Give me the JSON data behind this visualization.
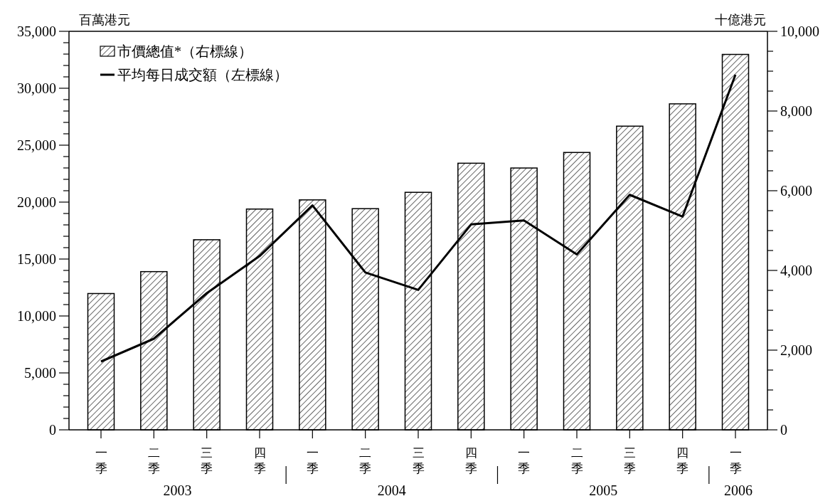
{
  "chart_data": {
    "type": "bar",
    "ylabel": "百萬港元",
    "y2label": "十億港元",
    "categories": [
      "一季",
      "二季",
      "三季",
      "四季",
      "一季",
      "二季",
      "三季",
      "四季",
      "一季",
      "二季",
      "三季",
      "四季",
      "一季"
    ],
    "series": [
      {
        "name": "市價總值*（右標線）",
        "axis": "y2",
        "color": "#000000",
        "values": [
          3420,
          3970,
          4770,
          5540,
          5770,
          5550,
          5960,
          6690,
          6570,
          6960,
          7620,
          8180,
          9420
        ]
      },
      {
        "name": "平均每日成交額（左標線）",
        "type": "line",
        "color": "#000000",
        "values": [
          6000,
          8000,
          12000,
          15260,
          19710,
          13820,
          12290,
          18040,
          18390,
          15410,
          20640,
          18730,
          31190
        ]
      }
    ],
    "ylim": [
      0,
      35000
    ],
    "yticks": [
      {
        "value": 0,
        "label": "0"
      },
      {
        "value": 1000,
        "label": null
      },
      {
        "value": 2000,
        "label": null
      },
      {
        "value": 3000,
        "label": null
      },
      {
        "value": 4000,
        "label": null
      },
      {
        "value": 5000,
        "label": "5,000"
      },
      {
        "value": 6000,
        "label": null
      },
      {
        "value": 7000,
        "label": null
      },
      {
        "value": 8000,
        "label": null
      },
      {
        "value": 9000,
        "label": null
      },
      {
        "value": 10000,
        "label": "10,000"
      },
      {
        "value": 11000,
        "label": null
      },
      {
        "value": 12000,
        "label": null
      },
      {
        "value": 13000,
        "label": null
      },
      {
        "value": 14000,
        "label": null
      },
      {
        "value": 15000,
        "label": "15,000"
      },
      {
        "value": 16000,
        "label": null
      },
      {
        "value": 17000,
        "label": null
      },
      {
        "value": 18000,
        "label": null
      },
      {
        "value": 19000,
        "label": null
      },
      {
        "value": 20000,
        "label": "20,000"
      },
      {
        "value": 21000,
        "label": null
      },
      {
        "value": 22000,
        "label": null
      },
      {
        "value": 23000,
        "label": null
      },
      {
        "value": 24000,
        "label": null
      },
      {
        "value": 25000,
        "label": "25,000"
      },
      {
        "value": 26000,
        "label": null
      },
      {
        "value": 27000,
        "label": null
      },
      {
        "value": 28000,
        "label": null
      },
      {
        "value": 29000,
        "label": null
      },
      {
        "value": 30000,
        "label": "30,000"
      },
      {
        "value": 31000,
        "label": null
      },
      {
        "value": 32000,
        "label": null
      },
      {
        "value": 33000,
        "label": null
      },
      {
        "value": 34000,
        "label": null
      },
      {
        "value": 35000,
        "label": "35,000"
      }
    ],
    "y2lim": [
      0,
      10000
    ],
    "y2ticks": [
      {
        "value": 0,
        "label": "0"
      },
      {
        "value": 500,
        "label": null
      },
      {
        "value": 1000,
        "label": null
      },
      {
        "value": 1500,
        "label": null
      },
      {
        "value": 2000,
        "label": "2,000"
      },
      {
        "value": 2500,
        "label": null
      },
      {
        "value": 3000,
        "label": null
      },
      {
        "value": 3500,
        "label": null
      },
      {
        "value": 4000,
        "label": "4,000"
      },
      {
        "value": 4500,
        "label": null
      },
      {
        "value": 5000,
        "label": null
      },
      {
        "value": 5500,
        "label": null
      },
      {
        "value": 6000,
        "label": "6,000"
      },
      {
        "value": 6500,
        "label": null
      },
      {
        "value": 7000,
        "label": null
      },
      {
        "value": 7500,
        "label": null
      },
      {
        "value": 8000,
        "label": "8,000"
      },
      {
        "value": 8500,
        "label": null
      },
      {
        "value": 9000,
        "label": null
      },
      {
        "value": 9500,
        "label": null
      },
      {
        "value": 10000,
        "label": "10,000"
      }
    ],
    "annotations": [
      "2003",
      "2004",
      "2005",
      "2006"
    ],
    "legend": "top left",
    "grid": false,
    "line_style": "solid",
    "marker": "none"
  }
}
